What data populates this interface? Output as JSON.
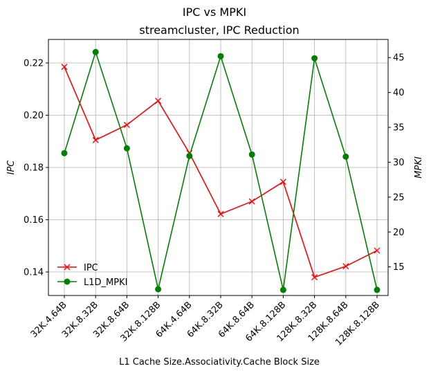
{
  "chart_data": {
    "type": "line",
    "title": "IPC vs MPKI",
    "subtitle": "streamcluster, IPC Reduction",
    "xlabel": "L1 Cache Size.Associativity.Cache Block Size",
    "ylabel_left": "IPC",
    "ylabel_right": "MPKI",
    "categories": [
      "32K.4.64B",
      "32K.8.32B",
      "32K.8.64B",
      "32K.8.128B",
      "64K.4.64B",
      "64K.8.32B",
      "64K.8.64B",
      "64K.8.128B",
      "128K.8.32B",
      "128K.8.64B",
      "128K.8.128B"
    ],
    "ylim_left": [
      0.131,
      0.229
    ],
    "ylim_right": [
      10.9,
      47.6
    ],
    "yticks_left": [
      0.14,
      0.16,
      0.18,
      0.2,
      0.22
    ],
    "yticks_left_labels": [
      "0.14",
      "0.16",
      "0.18",
      "0.20",
      "0.22"
    ],
    "yticks_right": [
      15,
      20,
      25,
      30,
      35,
      40,
      45
    ],
    "yticks_right_labels": [
      "15",
      "20",
      "25",
      "30",
      "35",
      "40",
      "45"
    ],
    "grid": true,
    "legend_position": "lower-left",
    "series": [
      {
        "name": "IPC",
        "axis": "left",
        "color": "#ff0000",
        "marker": "x",
        "values": [
          0.2185,
          0.1905,
          0.1963,
          0.2055,
          0.1855,
          0.1622,
          0.167,
          0.1745,
          0.138,
          0.1422,
          0.1482
        ]
      },
      {
        "name": "L1D_MPKI",
        "axis": "right",
        "color": "#008000",
        "marker": "o",
        "values": [
          31.3,
          45.8,
          32.0,
          11.8,
          30.9,
          45.2,
          31.1,
          11.7,
          44.9,
          30.8,
          11.7
        ]
      }
    ]
  }
}
